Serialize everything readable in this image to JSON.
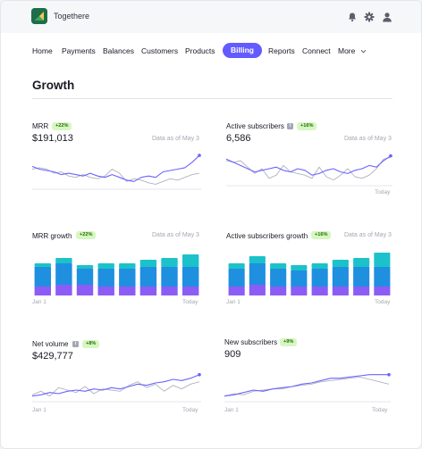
{
  "app": {
    "brand": "Togethere",
    "logo_icon": "leaf-logo-icon",
    "top_icons": [
      "bell-icon",
      "gear-icon",
      "user-icon"
    ],
    "colors": {
      "accent": "#635bff",
      "line_primary": "#6b63ff",
      "line_secondary": "#b0b3be",
      "badge_bg": "#d7f7c2",
      "badge_fg": "#217005",
      "bar_teal": "#1cc2c9",
      "bar_blue": "#1f8fe0",
      "bar_purple": "#8b5cf6"
    }
  },
  "nav": {
    "items": [
      {
        "label": "Home"
      },
      {
        "label": "Payments"
      },
      {
        "label": "Balances"
      },
      {
        "label": "Customers"
      },
      {
        "label": "Products"
      },
      {
        "label": "Billing",
        "active": true
      },
      {
        "label": "Reports"
      },
      {
        "label": "Connect"
      },
      {
        "label": "More"
      }
    ]
  },
  "page": {
    "title": "Growth"
  },
  "cards": {
    "mrr": {
      "title": "MRR",
      "badge": "+22%",
      "value": "$191,013",
      "as_of": "Data as of May 3"
    },
    "active_subscribers": {
      "title": "Active subscribers",
      "badge": "+16%",
      "value": "6,586",
      "as_of": "Data as of May 3",
      "x_end": "Today"
    },
    "mrr_growth": {
      "title": "MRR growth",
      "badge": "+22%",
      "as_of": "Data as of May 3",
      "x_start": "Jan 1",
      "x_end": "Today"
    },
    "active_subscribers_growth": {
      "title": "Active subscribers growth",
      "badge": "+16%",
      "as_of": "Data as of May 3",
      "x_start": "Jan 1",
      "x_end": "Today"
    },
    "net_volume": {
      "title": "Net volume",
      "badge": "+8%",
      "value": "$429,777",
      "x_start": "Jan 1",
      "x_end": "Today"
    },
    "new_subscribers": {
      "title": "New subscribers",
      "badge": "+9%",
      "value": "909",
      "x_start": "Jan 1",
      "x_end": "Today"
    }
  },
  "chart_data": [
    {
      "id": "mrr",
      "type": "line",
      "series": [
        {
          "values": [
            52,
            50,
            49,
            48,
            46,
            47,
            46,
            45,
            47,
            45,
            44,
            46,
            44,
            42,
            41,
            44,
            45,
            44,
            48,
            49,
            50,
            51,
            55,
            60
          ],
          "style": "primary"
        },
        {
          "values": [
            50,
            51,
            50,
            47,
            48,
            45,
            44,
            46,
            44,
            43,
            45,
            50,
            47,
            41,
            43,
            42,
            40,
            39,
            41,
            43,
            42,
            44,
            46,
            47
          ],
          "style": "secondary"
        }
      ],
      "ylim": [
        36,
        62
      ]
    },
    {
      "id": "active_subscribers",
      "type": "line",
      "series": [
        {
          "values": [
            56,
            54,
            52,
            50,
            48,
            49,
            50,
            51,
            49,
            48,
            50,
            49,
            46,
            47,
            49,
            50,
            48,
            47,
            49,
            50,
            52,
            51,
            55,
            58
          ],
          "style": "primary"
        },
        {
          "values": [
            55,
            54,
            55,
            51,
            47,
            50,
            44,
            46,
            52,
            48,
            47,
            46,
            44,
            51,
            45,
            43,
            46,
            50,
            45,
            44,
            46,
            50,
            56,
            57
          ],
          "style": "secondary"
        }
      ],
      "ylim": [
        40,
        60
      ]
    },
    {
      "id": "mrr_growth",
      "type": "bar",
      "categories": [
        "1",
        "2",
        "3",
        "4",
        "5",
        "6",
        "7",
        "8"
      ],
      "series": [
        {
          "name": "teal",
          "values": [
            2,
            3,
            2,
            3,
            3,
            4,
            5,
            7
          ]
        },
        {
          "name": "blue",
          "values": [
            11,
            12,
            9,
            10,
            10,
            11,
            11,
            11
          ]
        },
        {
          "name": "purple",
          "values": [
            5,
            6,
            6,
            5,
            5,
            5,
            5,
            5
          ]
        }
      ],
      "ylim": [
        0,
        25
      ]
    },
    {
      "id": "active_subscribers_growth",
      "type": "bar",
      "categories": [
        "1",
        "2",
        "3",
        "4",
        "5",
        "6",
        "7",
        "8"
      ],
      "series": [
        {
          "name": "teal",
          "values": [
            3,
            4,
            3,
            3,
            3,
            4,
            5,
            8
          ]
        },
        {
          "name": "blue",
          "values": [
            10,
            12,
            10,
            9,
            10,
            11,
            11,
            11
          ]
        },
        {
          "name": "purple",
          "values": [
            5,
            6,
            5,
            5,
            5,
            5,
            5,
            5
          ]
        }
      ],
      "ylim": [
        0,
        25
      ]
    },
    {
      "id": "net_volume",
      "type": "line",
      "series": [
        {
          "values": [
            40,
            41,
            43,
            42,
            44,
            45,
            44,
            46,
            45,
            47,
            46,
            48,
            50,
            49,
            51,
            52,
            54,
            53,
            55,
            58
          ],
          "style": "primary"
        },
        {
          "values": [
            41,
            44,
            40,
            47,
            45,
            43,
            48,
            42,
            46,
            45,
            44,
            49,
            52,
            47,
            50,
            44,
            49,
            46,
            50,
            52
          ],
          "style": "secondary"
        }
      ],
      "ylim": [
        36,
        60
      ]
    },
    {
      "id": "new_subscribers",
      "type": "line",
      "series": [
        {
          "values": [
            40,
            41,
            43,
            45,
            44,
            46,
            47,
            48,
            50,
            51,
            53,
            55,
            55,
            56,
            57,
            58,
            58,
            58
          ],
          "style": "primary"
        },
        {
          "values": [
            40,
            42,
            41,
            44,
            45,
            46,
            46,
            48,
            49,
            50,
            52,
            53,
            54,
            55,
            56,
            54,
            52,
            50
          ],
          "style": "secondary"
        }
      ],
      "ylim": [
        36,
        60
      ]
    }
  ]
}
